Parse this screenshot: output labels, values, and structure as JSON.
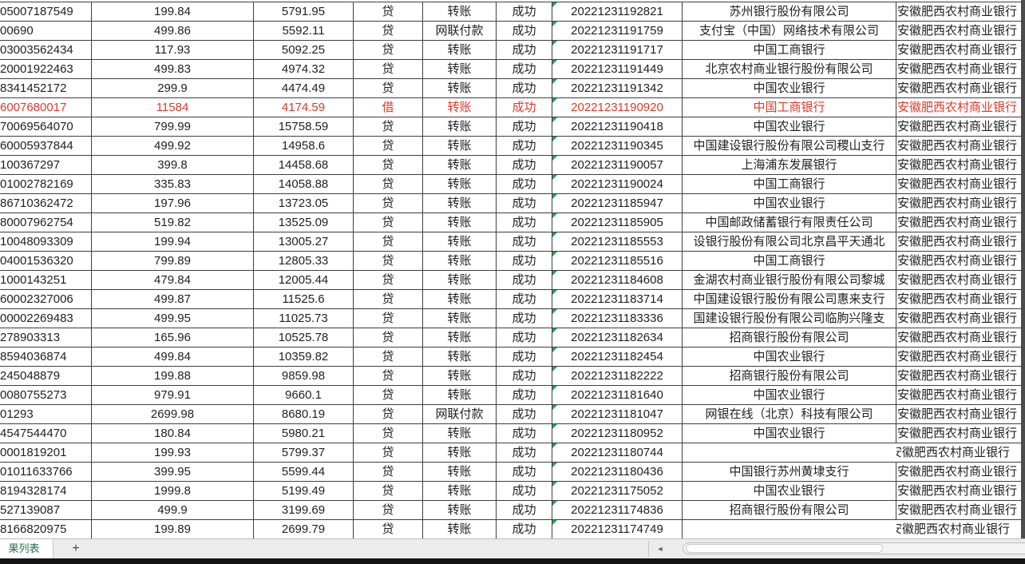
{
  "colors": {
    "grid_border": "#3f3f3f",
    "text": "#1f1f1f",
    "highlight_red": "#dd3a27",
    "indicator_green": "#1fa04d",
    "sheet_tab_green": "#217346",
    "tabbar_bg": "#ececec",
    "bottom_strip": "#141414"
  },
  "sheet_bar": {
    "active_tab_label": "果列表",
    "add_sheet_label": "+",
    "scroll_left_arrow": "◄"
  },
  "table": {
    "org_overflow_note": "rows with empty bank show org text shifted left over missing divider",
    "rows": [
      {
        "account": "05007187549",
        "amount": "199.84",
        "balance": "5791.95",
        "dc": "贷",
        "type": "转账",
        "status": "成功",
        "time": "20221231192821",
        "bank": "苏州银行股份有限公司",
        "org": "安徽肥西农村商业银行",
        "highlighted": false
      },
      {
        "account": "00690",
        "amount": "499.86",
        "balance": "5592.11",
        "dc": "贷",
        "type": "网联付款",
        "status": "成功",
        "time": "20221231191759",
        "bank": "支付宝（中国）网络技术有限公司",
        "org": "安徽肥西农村商业银行",
        "highlighted": false
      },
      {
        "account": "03003562434",
        "amount": "117.93",
        "balance": "5092.25",
        "dc": "贷",
        "type": "转账",
        "status": "成功",
        "time": "20221231191717",
        "bank": "中国工商银行",
        "org": "安徽肥西农村商业银行",
        "highlighted": false
      },
      {
        "account": "20001922463",
        "amount": "499.83",
        "balance": "4974.32",
        "dc": "贷",
        "type": "转账",
        "status": "成功",
        "time": "20221231191449",
        "bank": "北京农村商业银行股份有限公司",
        "org": "安徽肥西农村商业银行",
        "highlighted": false
      },
      {
        "account": "8341452172",
        "amount": "299.9",
        "balance": "4474.49",
        "dc": "贷",
        "type": "转账",
        "status": "成功",
        "time": "20221231191342",
        "bank": "中国农业银行",
        "org": "安徽肥西农村商业银行",
        "highlighted": false
      },
      {
        "account": "6007680017",
        "amount": "11584",
        "balance": "4174.59",
        "dc": "借",
        "type": "转账",
        "status": "成功",
        "time": "20221231190920",
        "bank": "中国工商银行",
        "org": "安徽肥西农村商业银行",
        "highlighted": true
      },
      {
        "account": "70069564070",
        "amount": "799.99",
        "balance": "15758.59",
        "dc": "贷",
        "type": "转账",
        "status": "成功",
        "time": "20221231190418",
        "bank": "中国农业银行",
        "org": "安徽肥西农村商业银行",
        "highlighted": false
      },
      {
        "account": "60005937844",
        "amount": "499.92",
        "balance": "14958.6",
        "dc": "贷",
        "type": "转账",
        "status": "成功",
        "time": "20221231190345",
        "bank": "中国建设银行股份有限公司稷山支行",
        "org": "安徽肥西农村商业银行",
        "highlighted": false
      },
      {
        "account": "100367297",
        "amount": "399.8",
        "balance": "14458.68",
        "dc": "贷",
        "type": "转账",
        "status": "成功",
        "time": "20221231190057",
        "bank": "上海浦东发展银行",
        "org": "安徽肥西农村商业银行",
        "highlighted": false
      },
      {
        "account": "01002782169",
        "amount": "335.83",
        "balance": "14058.88",
        "dc": "贷",
        "type": "转账",
        "status": "成功",
        "time": "20221231190024",
        "bank": "中国工商银行",
        "org": "安徽肥西农村商业银行",
        "highlighted": false
      },
      {
        "account": "86710362472",
        "amount": "197.96",
        "balance": "13723.05",
        "dc": "贷",
        "type": "转账",
        "status": "成功",
        "time": "20221231185947",
        "bank": "中国农业银行",
        "org": "安徽肥西农村商业银行",
        "highlighted": false
      },
      {
        "account": "80007962754",
        "amount": "519.82",
        "balance": "13525.09",
        "dc": "贷",
        "type": "转账",
        "status": "成功",
        "time": "20221231185905",
        "bank": "中国邮政储蓄银行有限责任公司",
        "org": "安徽肥西农村商业银行",
        "highlighted": false
      },
      {
        "account": "10048093309",
        "amount": "199.94",
        "balance": "13005.27",
        "dc": "贷",
        "type": "转账",
        "status": "成功",
        "time": "20221231185553",
        "bank": "设银行股份有限公司北京昌平天通北",
        "org": "安徽肥西农村商业银行",
        "highlighted": false
      },
      {
        "account": "04001536320",
        "amount": "799.89",
        "balance": "12805.33",
        "dc": "贷",
        "type": "转账",
        "status": "成功",
        "time": "20221231185516",
        "bank": "中国工商银行",
        "org": "安徽肥西农村商业银行",
        "highlighted": false
      },
      {
        "account": "1000143251",
        "amount": "479.84",
        "balance": "12005.44",
        "dc": "贷",
        "type": "转账",
        "status": "成功",
        "time": "20221231184608",
        "bank": "金湖农村商业银行股份有限公司黎城",
        "org": "安徽肥西农村商业银行",
        "highlighted": false
      },
      {
        "account": "60002327006",
        "amount": "499.87",
        "balance": "11525.6",
        "dc": "贷",
        "type": "转账",
        "status": "成功",
        "time": "20221231183714",
        "bank": "中国建设银行股份有限公司惠来支行",
        "org": "安徽肥西农村商业银行",
        "highlighted": false
      },
      {
        "account": "00002269483",
        "amount": "499.95",
        "balance": "11025.73",
        "dc": "贷",
        "type": "转账",
        "status": "成功",
        "time": "20221231183336",
        "bank": "国建设银行股份有限公司临朐兴隆支",
        "org": "安徽肥西农村商业银行",
        "highlighted": false
      },
      {
        "account": "278903313",
        "amount": "165.96",
        "balance": "10525.78",
        "dc": "贷",
        "type": "转账",
        "status": "成功",
        "time": "20221231182634",
        "bank": "招商银行股份有限公司",
        "org": "安徽肥西农村商业银行",
        "highlighted": false
      },
      {
        "account": "8594036874",
        "amount": "499.84",
        "balance": "10359.82",
        "dc": "贷",
        "type": "转账",
        "status": "成功",
        "time": "20221231182454",
        "bank": "中国农业银行",
        "org": "安徽肥西农村商业银行",
        "highlighted": false
      },
      {
        "account": "245048879",
        "amount": "199.88",
        "balance": "9859.98",
        "dc": "贷",
        "type": "转账",
        "status": "成功",
        "time": "20221231182222",
        "bank": "招商银行股份有限公司",
        "org": "安徽肥西农村商业银行",
        "highlighted": false
      },
      {
        "account": "0080755273",
        "amount": "979.91",
        "balance": "9660.1",
        "dc": "贷",
        "type": "转账",
        "status": "成功",
        "time": "20221231181640",
        "bank": "中国农业银行",
        "org": "安徽肥西农村商业银行",
        "highlighted": false
      },
      {
        "account": "01293",
        "amount": "2699.98",
        "balance": "8680.19",
        "dc": "贷",
        "type": "网联付款",
        "status": "成功",
        "time": "20221231181047",
        "bank": "网银在线（北京）科技有限公司",
        "org": "安徽肥西农村商业银行",
        "highlighted": false
      },
      {
        "account": "4547544470",
        "amount": "180.84",
        "balance": "5980.21",
        "dc": "贷",
        "type": "转账",
        "status": "成功",
        "time": "20221231180952",
        "bank": "中国农业银行",
        "org": "安徽肥西农村商业银行",
        "highlighted": false
      },
      {
        "account": "0001819201",
        "amount": "199.93",
        "balance": "5799.37",
        "dc": "贷",
        "type": "转账",
        "status": "成功",
        "time": "20221231180744",
        "bank": "",
        "org": "安徽肥西农村商业银行",
        "highlighted": false
      },
      {
        "account": "01011633766",
        "amount": "399.95",
        "balance": "5599.44",
        "dc": "贷",
        "type": "转账",
        "status": "成功",
        "time": "20221231180436",
        "bank": "中国银行苏州黄埭支行",
        "org": "安徽肥西农村商业银行",
        "highlighted": false
      },
      {
        "account": "8194328174",
        "amount": "1999.8",
        "balance": "5199.49",
        "dc": "贷",
        "type": "转账",
        "status": "成功",
        "time": "20221231175052",
        "bank": "中国农业银行",
        "org": "安徽肥西农村商业银行",
        "highlighted": false
      },
      {
        "account": "527139087",
        "amount": "499.9",
        "balance": "3199.69",
        "dc": "贷",
        "type": "转账",
        "status": "成功",
        "time": "20221231174836",
        "bank": "招商银行股份有限公司",
        "org": "安徽肥西农村商业银行",
        "highlighted": false
      },
      {
        "account": "8166820975",
        "amount": "199.89",
        "balance": "2699.79",
        "dc": "贷",
        "type": "转账",
        "status": "成功",
        "time": "20221231174749",
        "bank": "",
        "org": "安徽肥西农村商业银行",
        "highlighted": false
      }
    ]
  }
}
